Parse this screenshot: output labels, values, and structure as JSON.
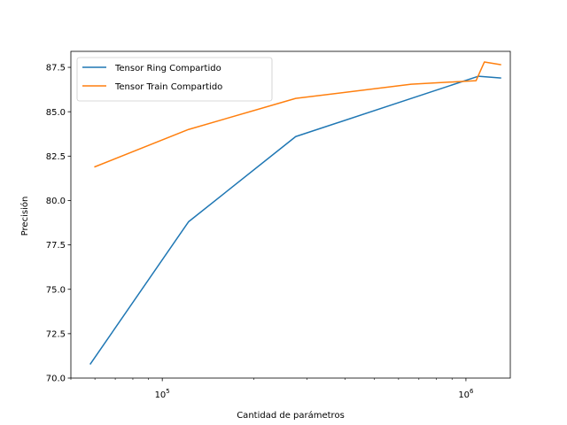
{
  "chart_data": {
    "type": "line",
    "xlabel": "Cantidad de parámetros",
    "ylabel": "Precisión",
    "xscale": "log",
    "xlim": [
      50000,
      1400000
    ],
    "ylim": [
      70.0,
      88.4
    ],
    "x_ticks": [
      {
        "value": 100000,
        "base": "10",
        "exp": "5"
      },
      {
        "value": 1000000,
        "base": "10",
        "exp": "6"
      }
    ],
    "y_ticks": [
      70.0,
      72.5,
      75.0,
      77.5,
      80.0,
      82.5,
      85.0,
      87.5
    ],
    "y_tick_labels": [
      "70.0",
      "72.5",
      "75.0",
      "77.5",
      "80.0",
      "82.5",
      "85.0",
      "87.5"
    ],
    "grid": false,
    "legend_position": "top-left",
    "series": [
      {
        "name": "Tensor Ring Compartido",
        "color": "#1f77b4",
        "x": [
          58000,
          122000,
          275000,
          1100000,
          1300000
        ],
        "y": [
          70.8,
          78.8,
          83.6,
          87.0,
          86.9
        ]
      },
      {
        "name": "Tensor Train Compartido",
        "color": "#ff7f0e",
        "x": [
          60000,
          122000,
          275000,
          660000,
          1080000,
          1150000,
          1300000
        ],
        "y": [
          81.9,
          84.0,
          85.75,
          86.55,
          86.75,
          87.8,
          87.65
        ]
      }
    ]
  }
}
